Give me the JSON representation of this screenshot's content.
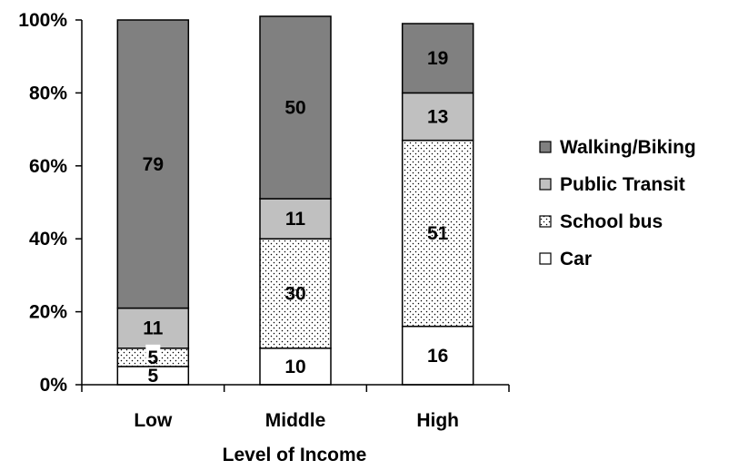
{
  "chart_data": {
    "type": "bar",
    "stacked": true,
    "percent_scale": true,
    "title": "",
    "xlabel": "Level of Income",
    "ylabel": "",
    "ylim": [
      0,
      100
    ],
    "y_ticks": [
      "0%",
      "20%",
      "40%",
      "60%",
      "80%",
      "100%"
    ],
    "categories": [
      "Low",
      "Middle",
      "High"
    ],
    "series": [
      {
        "name": "Car",
        "values": [
          5,
          10,
          16
        ],
        "color": "#ffffff",
        "pattern": "solid"
      },
      {
        "name": "School bus",
        "values": [
          5,
          30,
          51
        ],
        "color": "#ffffff",
        "pattern": "dots"
      },
      {
        "name": "Public Transit",
        "values": [
          11,
          11,
          13
        ],
        "color": "#c0c0c0",
        "pattern": "solid"
      },
      {
        "name": "Walking/Biking",
        "values": [
          79,
          50,
          19
        ],
        "color": "#808080",
        "pattern": "solid"
      }
    ],
    "data_labels": true,
    "legend_position": "right",
    "grid": false
  }
}
